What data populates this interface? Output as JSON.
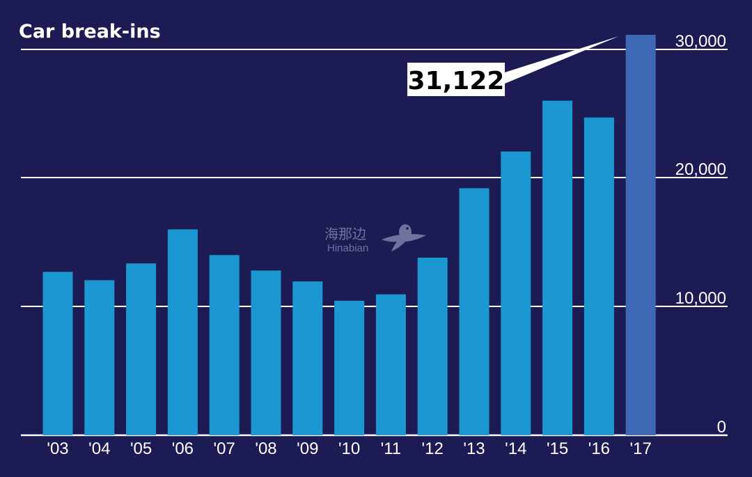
{
  "chart_data": {
    "type": "bar",
    "title": "Car break-ins",
    "categories": [
      "'03",
      "'04",
      "'05",
      "'06",
      "'07",
      "'08",
      "'09",
      "'10",
      "'11",
      "'12",
      "'13",
      "'14",
      "'15",
      "'16",
      "'17"
    ],
    "values": [
      12700,
      12050,
      13350,
      16000,
      14000,
      12800,
      11950,
      10450,
      10950,
      13800,
      19200,
      22050,
      26000,
      24700,
      31122
    ],
    "y_ticks": [
      0,
      10000,
      20000,
      30000
    ],
    "y_tick_labels": [
      "0",
      "10,000",
      "20,000",
      "30,000"
    ],
    "ylim": [
      0,
      31122
    ],
    "grid": true,
    "y_axis_side": "right",
    "callout": {
      "category": "'17",
      "label": "31,122"
    },
    "colors": {
      "background": "#1c1b54",
      "bar": "#1b98d1",
      "highlight_bar": "#3d68b3",
      "grid": "#ffffff",
      "text": "#ffffff",
      "callout_box": "#ffffff",
      "callout_text": "#000000"
    }
  },
  "watermark": {
    "chinese": "海那边",
    "latin": "Hinabian"
  }
}
